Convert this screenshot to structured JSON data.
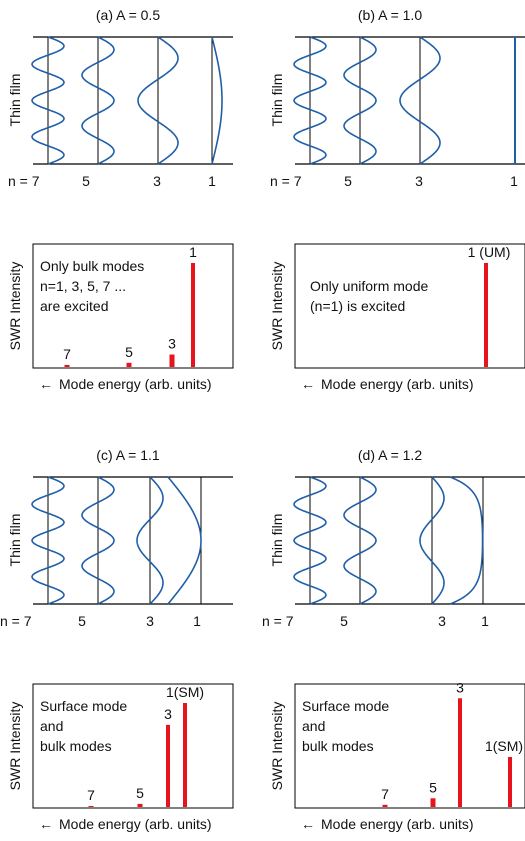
{
  "film_axis_label": "Thin film",
  "intensity_axis_label": "SWR Intensity",
  "energy_axis_label": "Mode energy (arb. units)",
  "arrow_glyph": "←",
  "colors": {
    "wave": "#1f5fa8",
    "bar": "#e8141b",
    "line": "#000000"
  },
  "panels": [
    {
      "id": "a",
      "title": "(a)  A = 0.5",
      "mode_labels": [
        "n = 7",
        "5",
        "3",
        "1"
      ],
      "annotation": [
        "Only bulk modes",
        "n=1, 3, 5, 7 ...",
        "are excited"
      ]
    },
    {
      "id": "b",
      "title": "(b)  A = 1.0",
      "mode_labels": [
        "n = 7",
        "5",
        "3",
        "1"
      ],
      "annotation": [
        "Only uniform mode",
        "(n=1) is excited"
      ]
    },
    {
      "id": "c",
      "title": "(c)  A = 1.1",
      "mode_labels": [
        "n = 7",
        "5",
        "3",
        "1"
      ],
      "annotation": [
        "Surface mode",
        "and",
        "bulk modes"
      ]
    },
    {
      "id": "d",
      "title": "(d)  A = 1.2",
      "mode_labels": [
        "n = 7",
        "5",
        "3",
        "1"
      ],
      "annotation": [
        "Surface mode",
        "and",
        "bulk modes"
      ]
    }
  ],
  "chart_data": [
    {
      "type": "bar",
      "panel": "a",
      "categories": [
        "7",
        "5",
        "3",
        "1"
      ],
      "values": [
        0.02,
        0.04,
        0.12,
        1.0
      ],
      "bar_labels": [
        "7",
        "5",
        "3",
        "1"
      ],
      "xlabel": "Mode energy (arb. units)",
      "ylabel": "SWR Intensity",
      "ylim": [
        0,
        1.15
      ]
    },
    {
      "type": "bar",
      "panel": "b",
      "categories": [
        "7",
        "5",
        "3",
        "1"
      ],
      "values": [
        0,
        0,
        0,
        1.0
      ],
      "bar_labels": [
        "",
        "",
        "",
        "1 (UM)"
      ],
      "xlabel": "Mode energy (arb. units)",
      "ylabel": "SWR Intensity",
      "ylim": [
        0,
        1.15
      ]
    },
    {
      "type": "bar",
      "panel": "c",
      "categories": [
        "7",
        "5",
        "3",
        "1"
      ],
      "values": [
        0.01,
        0.03,
        0.79,
        1.0
      ],
      "bar_labels": [
        "7",
        "5",
        "3",
        "1(SM)"
      ],
      "xlabel": "Mode energy (arb. units)",
      "ylabel": "SWR Intensity",
      "ylim": [
        0,
        1.15
      ]
    },
    {
      "type": "bar",
      "panel": "d",
      "categories": [
        "7",
        "5",
        "3",
        "1"
      ],
      "values": [
        0.02,
        0.08,
        1.0,
        0.46
      ],
      "bar_labels": [
        "7",
        "5",
        "3",
        "1(SM)"
      ],
      "xlabel": "Mode energy (arb. units)",
      "ylabel": "SWR Intensity",
      "ylim": [
        0,
        1.1
      ]
    }
  ]
}
